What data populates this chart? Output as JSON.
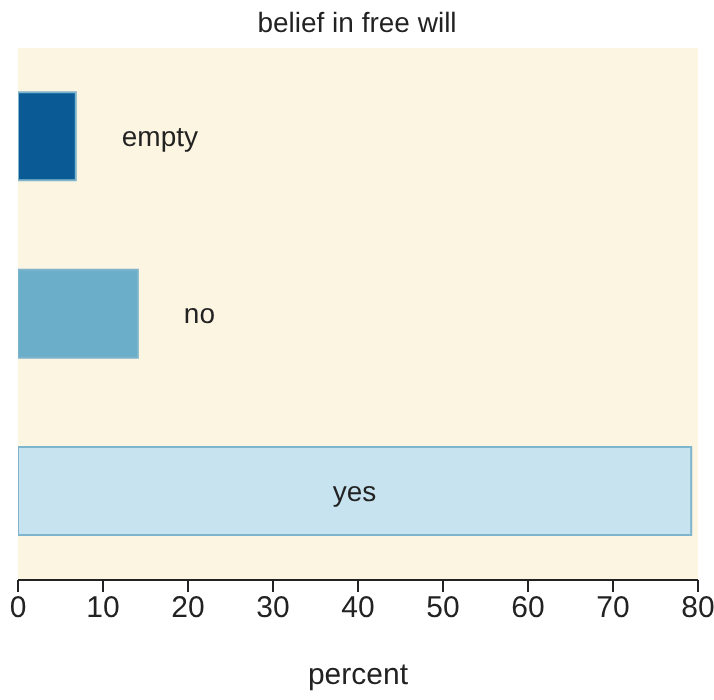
{
  "chart_data": {
    "type": "bar",
    "orientation": "horizontal",
    "title": "belief in free will",
    "xlabel": "percent",
    "categories": [
      "empty",
      "no",
      "yes"
    ],
    "values": [
      6.8,
      14.1,
      79.2
    ],
    "colors": [
      "#0a5a96",
      "#6aaec9",
      "#c6e3ef"
    ],
    "xlim": [
      0,
      80
    ],
    "xticks": [
      0,
      10,
      20,
      30,
      40,
      50,
      60,
      70,
      80
    ],
    "grid": false
  }
}
